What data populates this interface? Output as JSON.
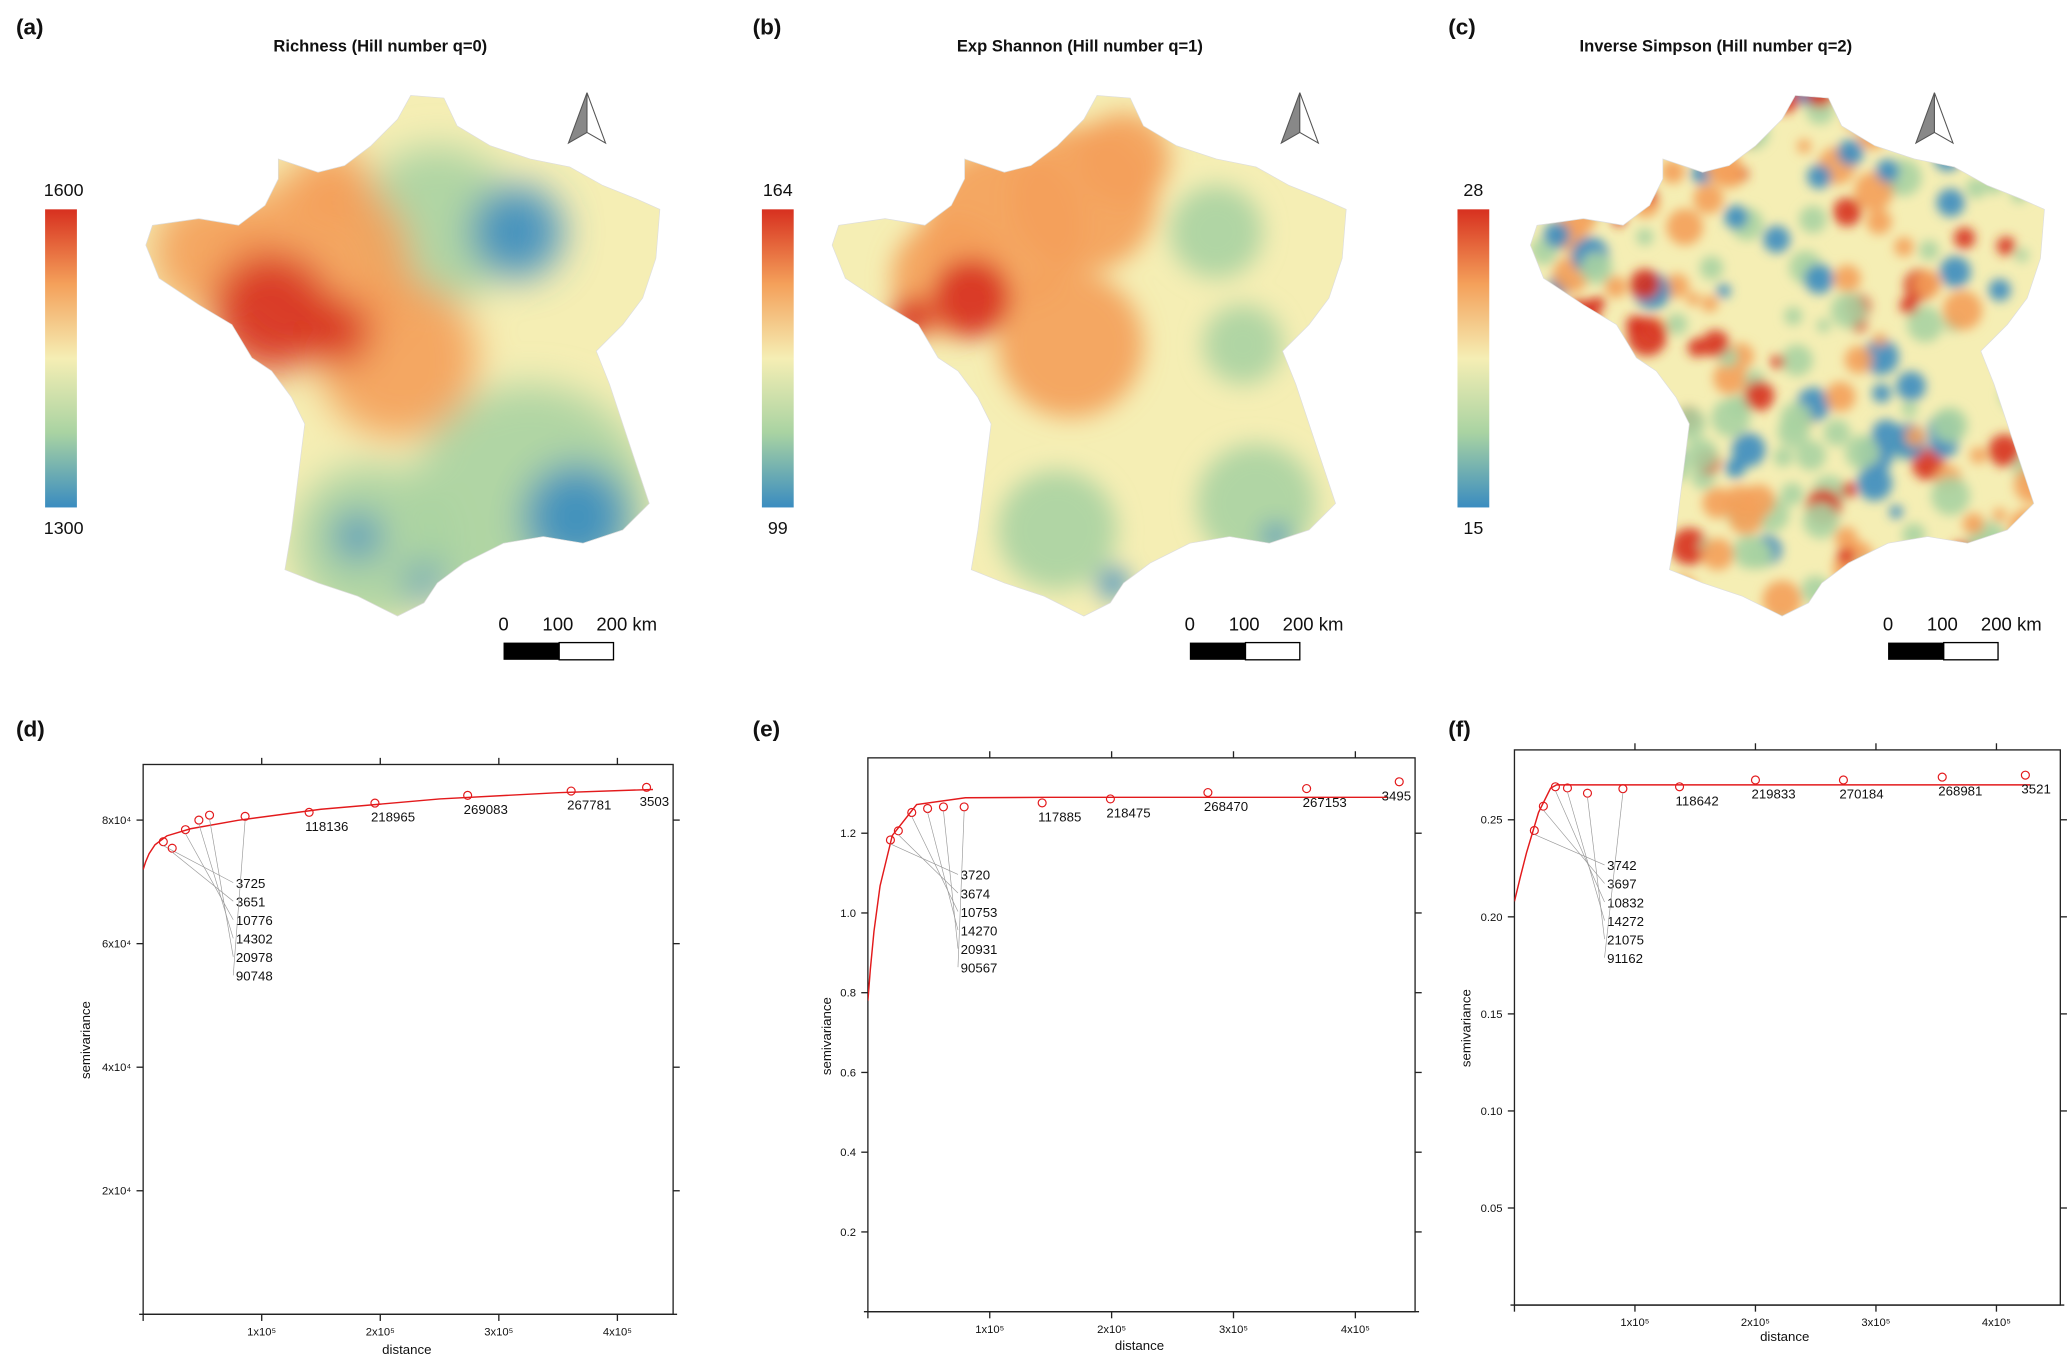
{
  "colors": {
    "high": "#d7301f",
    "mid_high": "#f4a05a",
    "mid": "#f5eeb4",
    "mid_low": "#a9d3a2",
    "low": "#3a8cc0",
    "fit_line": "#e31a1c",
    "points": "#e31a1c"
  },
  "maps": [
    {
      "label": "(a)",
      "title": "Richness (Hill number q=0)",
      "legend_max": "1600",
      "legend_min": "1300",
      "scale_labels": [
        "0",
        "100",
        "200 km"
      ],
      "north_arrow": "north-arrow-icon"
    },
    {
      "label": "(b)",
      "title": "Exp Shannon (Hill number q=1)",
      "legend_max": "164",
      "legend_min": "99",
      "scale_labels": [
        "0",
        "100",
        "200 km"
      ],
      "north_arrow": "north-arrow-icon"
    },
    {
      "label": "(c)",
      "title": "Inverse Simpson (Hill number q=2)",
      "legend_max": "28",
      "legend_min": "15",
      "scale_labels": [
        "0",
        "100",
        "200 km"
      ],
      "north_arrow": "north-arrow-icon"
    }
  ],
  "chart_data": [
    {
      "label": "(d)",
      "type": "scatter",
      "xlabel": "distance",
      "ylabel": "semivariance",
      "xlim": [
        0,
        447000
      ],
      "ylim": [
        0,
        89000
      ],
      "xticks": [
        {
          "v": 100000,
          "t": "1x10⁵"
        },
        {
          "v": 200000,
          "t": "2x10⁵"
        },
        {
          "v": 300000,
          "t": "3x10⁵"
        },
        {
          "v": 400000,
          "t": "4x10⁵"
        }
      ],
      "yticks": [
        {
          "v": 20000,
          "t": "2x10⁴"
        },
        {
          "v": 40000,
          "t": "4x10⁴"
        },
        {
          "v": 60000,
          "t": "6x10⁴"
        },
        {
          "v": 80000,
          "t": "8x10⁴"
        }
      ],
      "points": [
        {
          "x": 17000,
          "y": 76500,
          "np": "3725"
        },
        {
          "x": 24500,
          "y": 75450,
          "np": "3651"
        },
        {
          "x": 35700,
          "y": 78450,
          "np": "10776"
        },
        {
          "x": 47000,
          "y": 80000,
          "np": "14302"
        },
        {
          "x": 56000,
          "y": 80800,
          "np": "20978"
        },
        {
          "x": 86000,
          "y": 80600,
          "np": "90748"
        },
        {
          "x": 140000,
          "y": 81250,
          "np": "118136"
        },
        {
          "x": 195500,
          "y": 82750,
          "np": "218965"
        },
        {
          "x": 273700,
          "y": 84000,
          "np": "269083"
        },
        {
          "x": 361000,
          "y": 84700,
          "np": "267781"
        },
        {
          "x": 424600,
          "y": 85300,
          "np": "3503"
        }
      ],
      "fit": {
        "x": [
          0,
          2000,
          5000,
          10000,
          20000,
          40000,
          80000,
          150000,
          250000,
          350000,
          430000
        ],
        "y": [
          72000,
          73195,
          74547,
          76006,
          77446,
          78597,
          79967,
          81749,
          83420,
          84436,
          84957
        ]
      }
    },
    {
      "label": "(e)",
      "type": "scatter",
      "xlabel": "distance",
      "ylabel": "semivariance",
      "xlim": [
        0,
        449000
      ],
      "ylim": [
        0,
        1.389
      ],
      "xticks": [
        {
          "v": 100000,
          "t": "1x10⁵"
        },
        {
          "v": 200000,
          "t": "2x10⁵"
        },
        {
          "v": 300000,
          "t": "3x10⁵"
        },
        {
          "v": 400000,
          "t": "4x10⁵"
        }
      ],
      "yticks": [
        {
          "v": 0.2,
          "t": "0.2"
        },
        {
          "v": 0.4,
          "t": "0.4"
        },
        {
          "v": 0.6,
          "t": "0.6"
        },
        {
          "v": 0.8,
          "t": "0.8"
        },
        {
          "v": 1.0,
          "t": "1.0"
        },
        {
          "v": 1.2,
          "t": "1.2"
        }
      ],
      "points": [
        {
          "x": 18500,
          "y": 1.183,
          "np": "3720"
        },
        {
          "x": 25000,
          "y": 1.206,
          "np": "3674"
        },
        {
          "x": 36000,
          "y": 1.252,
          "np": "10753"
        },
        {
          "x": 49000,
          "y": 1.262,
          "np": "14270"
        },
        {
          "x": 62000,
          "y": 1.266,
          "np": "20931"
        },
        {
          "x": 79000,
          "y": 1.266,
          "np": "90567"
        },
        {
          "x": 143000,
          "y": 1.276,
          "np": "117885"
        },
        {
          "x": 199000,
          "y": 1.286,
          "np": "218475"
        },
        {
          "x": 279000,
          "y": 1.302,
          "np": "268470"
        },
        {
          "x": 360000,
          "y": 1.312,
          "np": "267153"
        },
        {
          "x": 436000,
          "y": 1.329,
          "np": "3495"
        }
      ],
      "fit": {
        "x": [
          0,
          2000,
          5000,
          10000,
          20000,
          40000,
          80000,
          150000,
          250000,
          350000,
          427000
        ],
        "y": [
          0.78,
          0.858,
          0.954,
          1.068,
          1.194,
          1.272,
          1.289,
          1.29,
          1.29,
          1.29,
          1.29
        ]
      }
    },
    {
      "label": "(f)",
      "type": "scatter",
      "xlabel": "distance",
      "ylabel": "semivariance",
      "xlim": [
        0,
        453000
      ],
      "ylim": [
        0,
        0.286
      ],
      "xticks": [
        {
          "v": 100000,
          "t": "1x10⁵"
        },
        {
          "v": 200000,
          "t": "2x10⁵"
        },
        {
          "v": 300000,
          "t": "3x10⁵"
        },
        {
          "v": 400000,
          "t": "4x10⁵"
        }
      ],
      "yticks": [
        {
          "v": 0.05,
          "t": "0.05"
        },
        {
          "v": 0.1,
          "t": "0.10"
        },
        {
          "v": 0.15,
          "t": "0.15"
        },
        {
          "v": 0.2,
          "t": "0.20"
        },
        {
          "v": 0.25,
          "t": "0.25"
        }
      ],
      "points": [
        {
          "x": 16500,
          "y": 0.2445,
          "np": "3742"
        },
        {
          "x": 24000,
          "y": 0.257,
          "np": "3697"
        },
        {
          "x": 34000,
          "y": 0.267,
          "np": "10832"
        },
        {
          "x": 44000,
          "y": 0.2664,
          "np": "14272"
        },
        {
          "x": 60600,
          "y": 0.2637,
          "np": "21075"
        },
        {
          "x": 90000,
          "y": 0.266,
          "np": "91162"
        },
        {
          "x": 137000,
          "y": 0.267,
          "np": "118642"
        },
        {
          "x": 200000,
          "y": 0.2705,
          "np": "219833"
        },
        {
          "x": 273000,
          "y": 0.2705,
          "np": "270184"
        },
        {
          "x": 355000,
          "y": 0.272,
          "np": "268981"
        },
        {
          "x": 424000,
          "y": 0.273,
          "np": "3521"
        }
      ],
      "fit": {
        "x": [
          0,
          5000,
          10000,
          20000,
          30000,
          35000,
          428000
        ],
        "y": [
          0.208,
          0.2208,
          0.233,
          0.2538,
          0.2663,
          0.268,
          0.268
        ]
      }
    }
  ]
}
